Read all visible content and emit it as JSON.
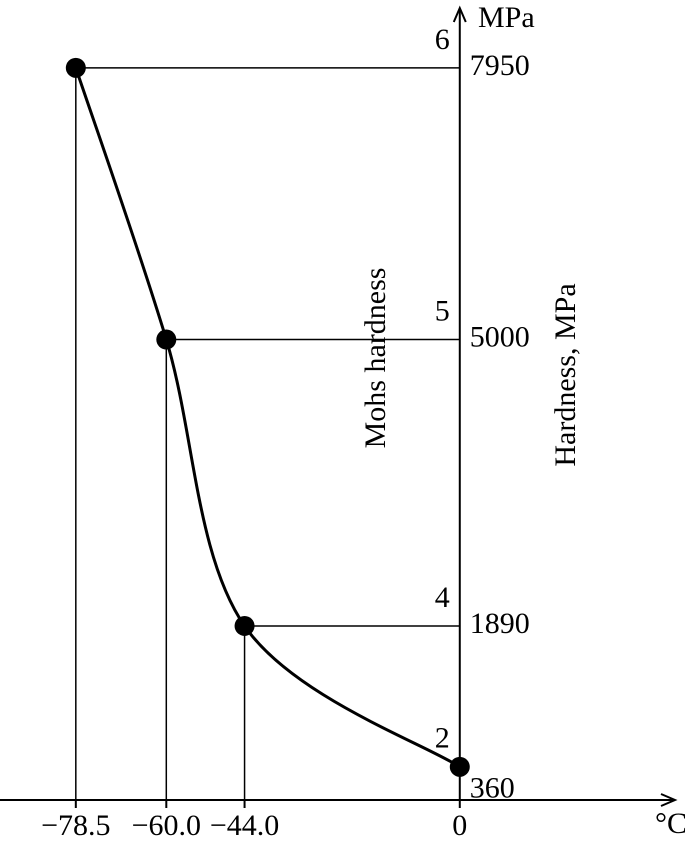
{
  "chart_data": {
    "type": "line",
    "x_unit": "°C",
    "y_unit": "MPa",
    "y_label": "Hardness, MPa",
    "x": [
      -78.5,
      -60.0,
      -44.0,
      0
    ],
    "xlim": [
      -94,
      44
    ],
    "xticks": [
      {
        "value": -78.5,
        "label": "−78.5"
      },
      {
        "value": -60.0,
        "label": "−60.0"
      },
      {
        "value": -44.0,
        "label": "−44.0"
      },
      0
    ],
    "ylim": [
      0,
      8600
    ],
    "yticks": [
      360,
      1890,
      5000,
      7950
    ],
    "series": [
      {
        "name": "Hardness, MPa",
        "color": "#000000",
        "values": [
          7950,
          5000,
          1890,
          360
        ]
      }
    ],
    "mohs_hardness": {
      "label": "Mohs hardness",
      "values": [
        6,
        5,
        4,
        2
      ]
    }
  }
}
